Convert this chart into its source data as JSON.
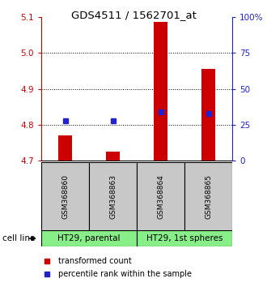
{
  "title": "GDS4511 / 1562701_at",
  "samples": [
    "GSM368860",
    "GSM368863",
    "GSM368864",
    "GSM368865"
  ],
  "transformed_counts": [
    4.77,
    4.725,
    5.087,
    4.955
  ],
  "percentile_pct": [
    28,
    28,
    34,
    33
  ],
  "ylim_left": [
    4.7,
    5.1
  ],
  "ylim_right": [
    0,
    100
  ],
  "yticks_left": [
    4.7,
    4.8,
    4.9,
    5.0,
    5.1
  ],
  "yticks_right": [
    0,
    25,
    50,
    75,
    100
  ],
  "ytick_labels_right": [
    "0",
    "25",
    "50",
    "75",
    "100%"
  ],
  "gridlines": [
    4.8,
    4.9,
    5.0
  ],
  "bar_bottom": 4.7,
  "bar_color": "#cc0000",
  "dot_color": "#2222cc",
  "bg_color_gray": "#c8c8c8",
  "bg_color_green": "#88ee88",
  "cell_line_groups": [
    {
      "label": "HT29, parental",
      "samples": [
        0,
        1
      ]
    },
    {
      "label": "HT29, 1st spheres",
      "samples": [
        2,
        3
      ]
    }
  ],
  "axis_color_left": "#cc0000",
  "axis_color_right": "#2222cc",
  "bar_width": 0.3
}
